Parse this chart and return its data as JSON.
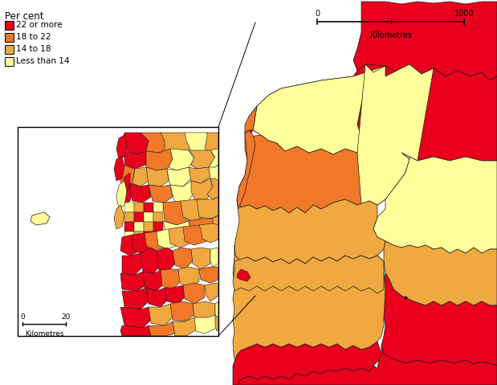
{
  "legend_title": "Per cent",
  "legend_items": [
    {
      "label": "22 or more",
      "color": "#E8001C"
    },
    {
      "label": "18 to 22",
      "color": "#F07828"
    },
    {
      "label": "14 to 18",
      "color": "#F0A840"
    },
    {
      "label": "Less than 14",
      "color": "#FFFF99"
    }
  ],
  "bg": "#FFFFFF",
  "border": "#1A1A1A"
}
